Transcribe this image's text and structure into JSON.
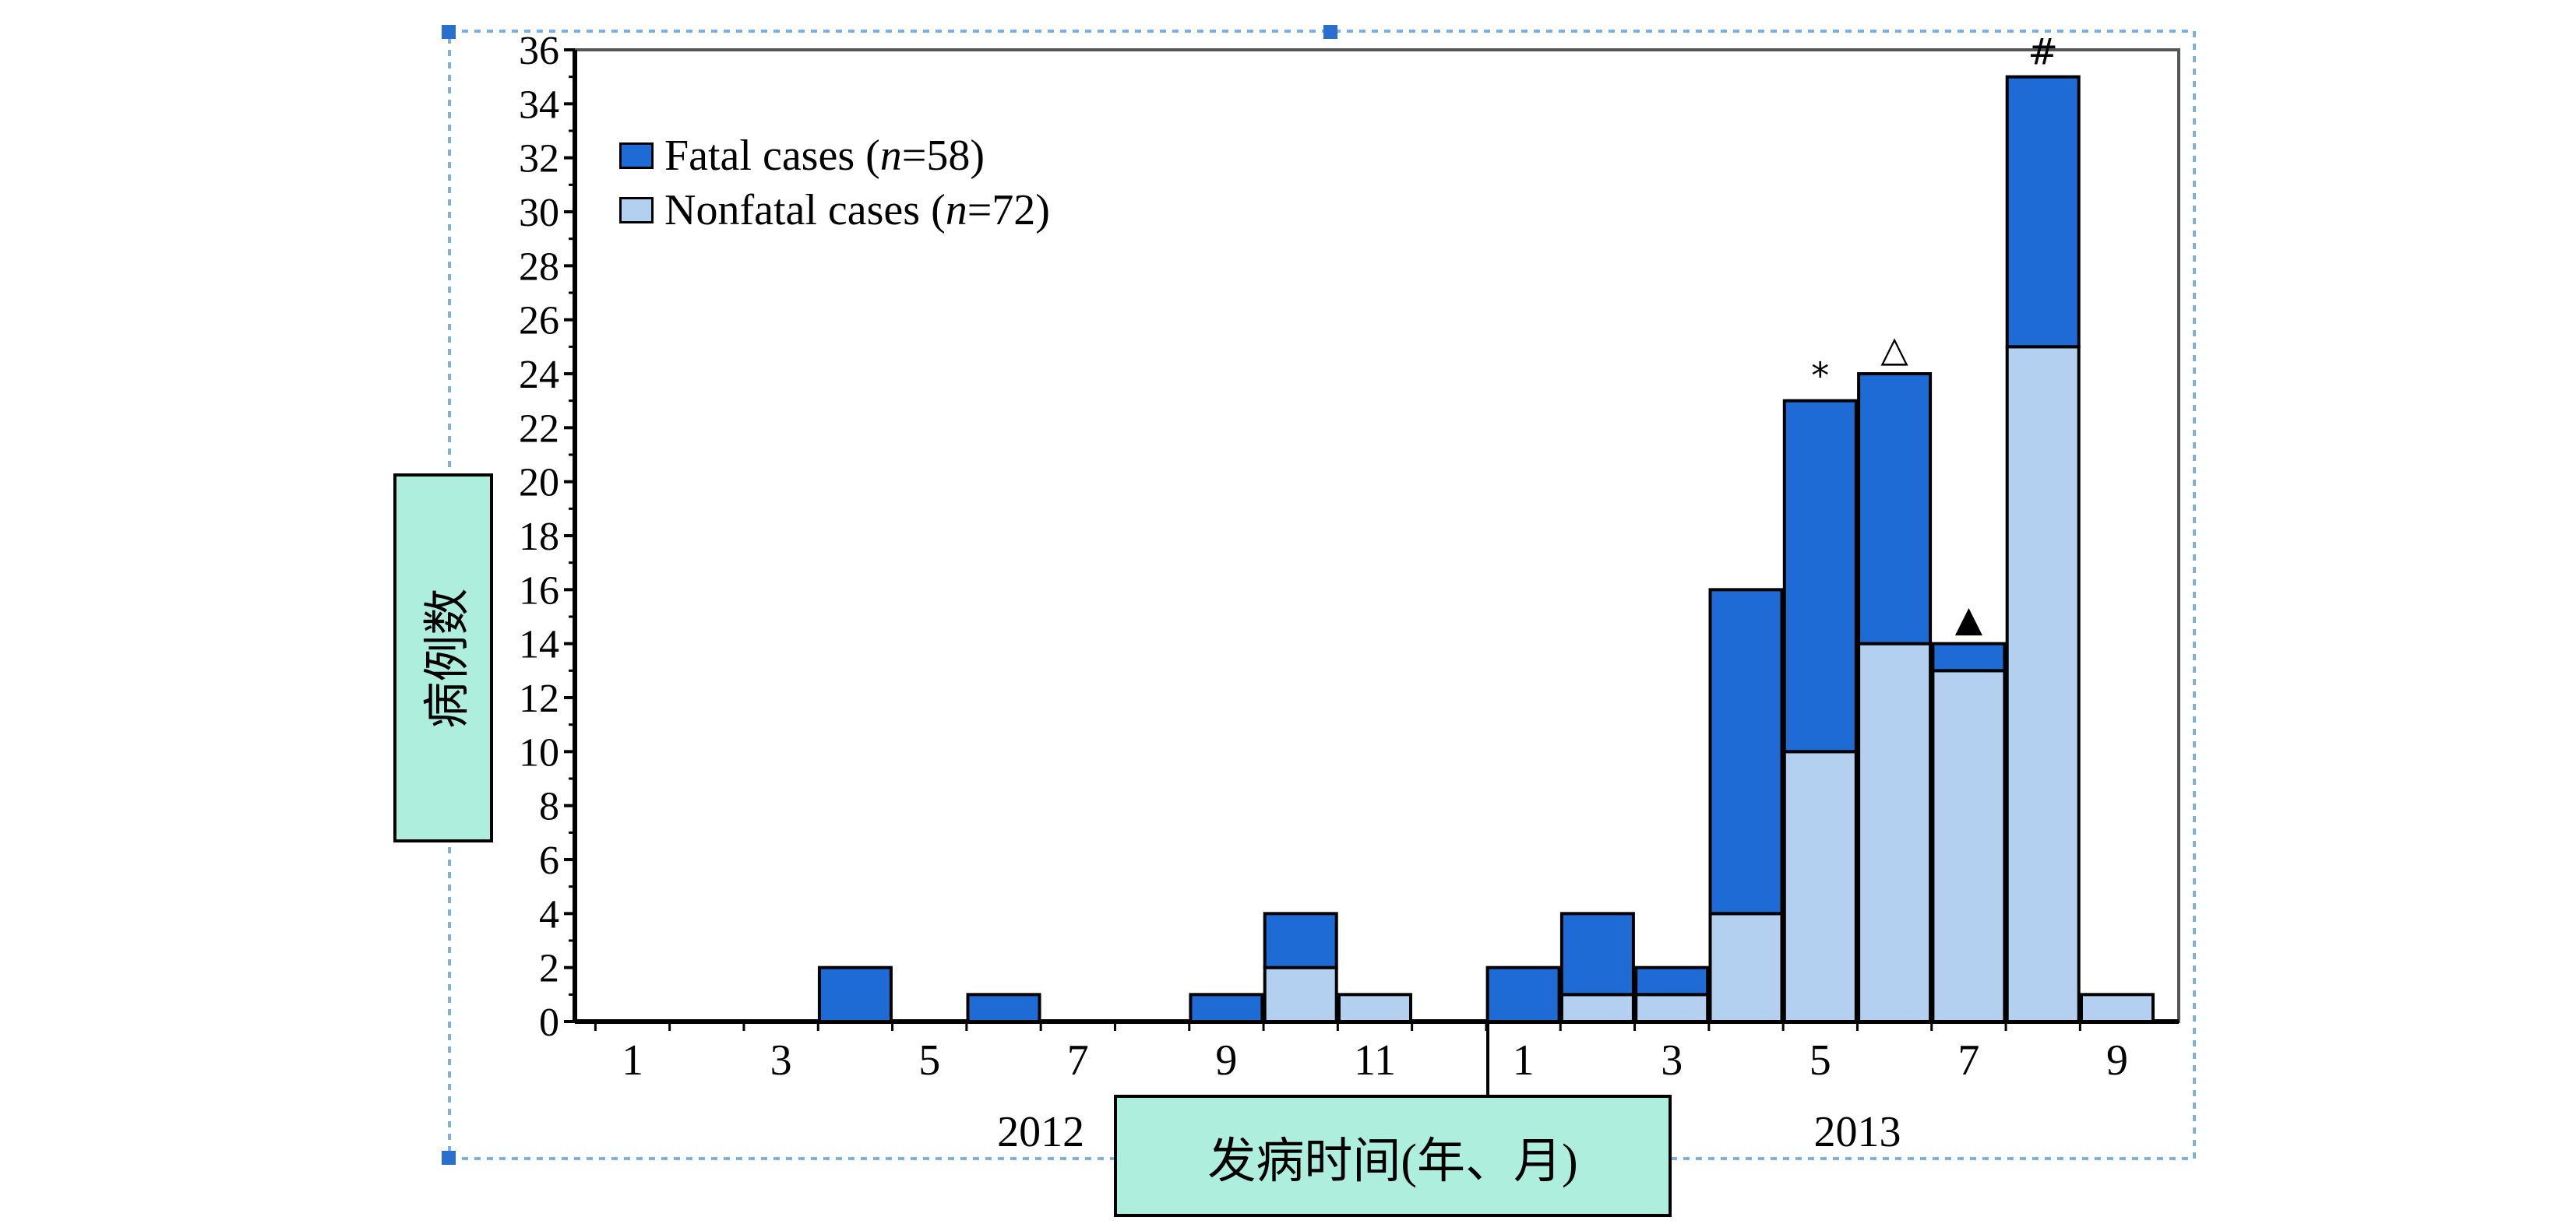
{
  "chart_data": {
    "type": "bar",
    "stacked": true,
    "title": "",
    "xlabel": "发病时间(年、月)",
    "ylabel": "病例数",
    "ylim": [
      0,
      36
    ],
    "yticks": [
      0,
      2,
      4,
      6,
      8,
      10,
      12,
      14,
      16,
      18,
      20,
      22,
      24,
      26,
      28,
      30,
      32,
      34,
      36
    ],
    "legend_position": "top-left",
    "legend": [
      {
        "prefix": "Fatal cases (",
        "n_symbol": "n",
        "suffix": "=58)",
        "color": "#1f6bd6"
      },
      {
        "prefix": "Nonfatal cases (",
        "n_symbol": "n",
        "suffix": "=72)",
        "color": "#b3d0f0"
      }
    ],
    "year_labels": [
      {
        "label": "2012",
        "month_index": 5.5
      },
      {
        "label": "2013",
        "month_index": 16.5
      }
    ],
    "categories": [
      "2012-1",
      "2012-2",
      "2012-3",
      "2012-4",
      "2012-5",
      "2012-6",
      "2012-7",
      "2012-8",
      "2012-9",
      "2012-10",
      "2012-11",
      "2012-12",
      "2013-1",
      "2013-2",
      "2013-3",
      "2013-4",
      "2013-5",
      "2013-6",
      "2013-7",
      "2013-8",
      "2013-9"
    ],
    "tick_labels": [
      "1",
      "",
      "3",
      "",
      "5",
      "",
      "7",
      "",
      "9",
      "",
      "11",
      "",
      "1",
      "",
      "3",
      "",
      "5",
      "",
      "7",
      "",
      "9"
    ],
    "series": [
      {
        "name": "Nonfatal cases",
        "color": "#b3d0f0",
        "values": [
          0,
          0,
          0,
          0,
          0,
          0,
          0,
          0,
          0,
          2,
          1,
          0,
          0,
          1,
          1,
          4,
          10,
          14,
          13,
          25,
          1
        ]
      },
      {
        "name": "Fatal cases",
        "color": "#1f6bd6",
        "values": [
          0,
          0,
          0,
          2,
          0,
          1,
          0,
          0,
          1,
          2,
          0,
          0,
          2,
          3,
          1,
          12,
          13,
          10,
          1,
          10,
          0
        ]
      }
    ],
    "annotations": [
      {
        "category": "2013-5",
        "text": "*"
      },
      {
        "category": "2013-6",
        "text": "△"
      },
      {
        "category": "2013-7",
        "text": "▲"
      },
      {
        "category": "2013-8",
        "text": "#"
      }
    ]
  }
}
